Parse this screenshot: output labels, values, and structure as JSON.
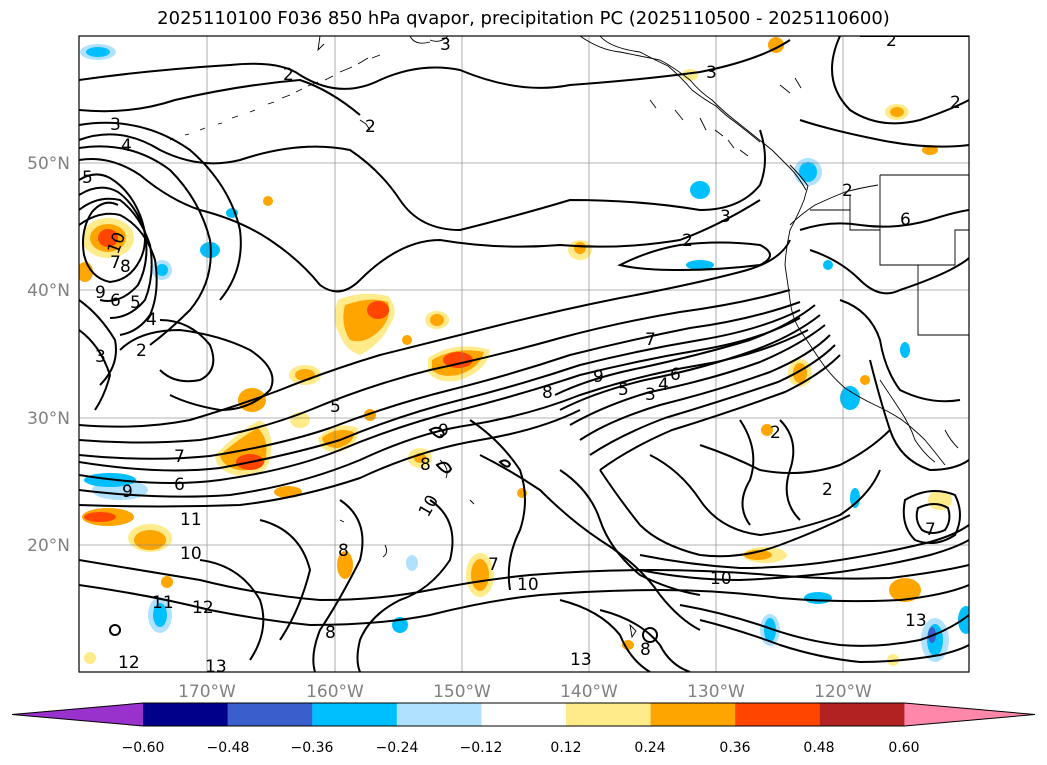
{
  "title": "2025110100 F036 850 hPa qvapor, precipitation PC (2025110500 - 2025110600)",
  "map": {
    "lon_ticks": [
      "170°W",
      "160°W",
      "150°W",
      "140°W",
      "130°W",
      "120°W"
    ],
    "lat_ticks": [
      "50°N",
      "40°N",
      "30°N",
      "20°N"
    ],
    "contour_labels": [
      "2",
      "3",
      "2",
      "2",
      "3",
      "2",
      "3",
      "4",
      "5",
      "10",
      "8",
      "7",
      "9",
      "6",
      "5",
      "3",
      "4",
      "2",
      "3",
      "2",
      "2",
      "6",
      "7",
      "8",
      "9",
      "5",
      "4",
      "3",
      "6",
      "5",
      "9",
      "7",
      "6",
      "9",
      "8",
      "10",
      "11",
      "10",
      "2",
      "2",
      "7",
      "10",
      "12",
      "11",
      "13",
      "12",
      "7",
      "10",
      "8",
      "8",
      "13",
      "13",
      "8"
    ]
  },
  "colorbar": {
    "ticks": [
      "−0.60",
      "−0.48",
      "−0.36",
      "−0.24",
      "−0.12",
      "0.12",
      "0.24",
      "0.36",
      "0.48",
      "0.60"
    ],
    "colors": [
      "#9932cc",
      "#00008b",
      "#3a5fcd",
      "#00bfff",
      "#b0e2ff",
      "#ffffff",
      "#ffeb8a",
      "#ffa500",
      "#ff4500",
      "#b22222",
      "#ff88aa"
    ]
  },
  "colors": {
    "precip_orange": "#ffa500",
    "precip_red": "#ff4500",
    "precip_yellow": "#ffeb8a",
    "precip_cyan": "#00bfff",
    "precip_lightblue": "#b0e2ff",
    "grid": "#808080"
  }
}
